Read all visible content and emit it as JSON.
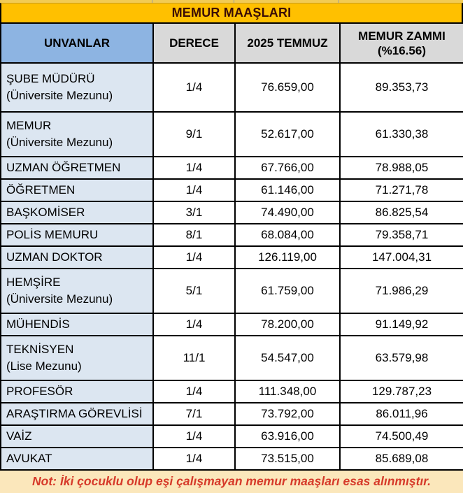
{
  "title": "MEMUR MAAŞLARI",
  "columns": {
    "unvanlar": "UNVANLAR",
    "derece": "DERECE",
    "temmuz": "2025 TEMMUZ",
    "zam_line1": "MEMUR ZAMMI",
    "zam_line2": "(%16.56)"
  },
  "rows": [
    {
      "name": "ŞUBE MÜDÜRÜ",
      "qualifier": "(Üniversite Mezunu)",
      "derece": "1/4",
      "temmuz": "76.659,00",
      "zam": "89.353,73"
    },
    {
      "name": "MEMUR",
      "qualifier": "(Üniversite Mezunu)",
      "derece": "9/1",
      "temmuz": "52.617,00",
      "zam": "61.330,38"
    },
    {
      "name": "UZMAN ÖĞRETMEN",
      "qualifier": "",
      "derece": "1/4",
      "temmuz": "67.766,00",
      "zam": "78.988,05"
    },
    {
      "name": "ÖĞRETMEN",
      "qualifier": "",
      "derece": "1/4",
      "temmuz": "61.146,00",
      "zam": "71.271,78"
    },
    {
      "name": "BAŞKOMİSER",
      "qualifier": "",
      "derece": "3/1",
      "temmuz": "74.490,00",
      "zam": "86.825,54"
    },
    {
      "name": "POLİS MEMURU",
      "qualifier": "",
      "derece": "8/1",
      "temmuz": "68.084,00",
      "zam": "79.358,71"
    },
    {
      "name": "UZMAN DOKTOR",
      "qualifier": "",
      "derece": "1/4",
      "temmuz": "126.119,00",
      "zam": "147.004,31"
    },
    {
      "name": "HEMŞİRE",
      "qualifier": "(Üniversite Mezunu)",
      "derece": "5/1",
      "temmuz": "61.759,00",
      "zam": "71.986,29"
    },
    {
      "name": "MÜHENDİS",
      "qualifier": "",
      "derece": "1/4",
      "temmuz": "78.200,00",
      "zam": "91.149,92"
    },
    {
      "name": "TEKNİSYEN",
      "qualifier": "(Lise Mezunu)",
      "derece": "11/1",
      "temmuz": "54.547,00",
      "zam": "63.579,98"
    },
    {
      "name": "PROFESÖR",
      "qualifier": "",
      "derece": "1/4",
      "temmuz": "111.348,00",
      "zam": "129.787,23"
    },
    {
      "name": "ARAŞTIRMA GÖREVLİSİ",
      "qualifier": "",
      "derece": "7/1",
      "temmuz": "73.792,00",
      "zam": "86.011,96"
    },
    {
      "name": "VAİZ",
      "qualifier": "",
      "derece": "1/4",
      "temmuz": "63.916,00",
      "zam": "74.500,49"
    },
    {
      "name": "AVUKAT",
      "qualifier": "",
      "derece": "1/4",
      "temmuz": "73.515,00",
      "zam": "85.689,08"
    }
  ],
  "note": "Not: İki çocuklu olup eşi çalışmayan memur maaşları esas alınmıştır.",
  "colors": {
    "title_bg": "#FFC000",
    "title_text": "#3B0D06",
    "sliver_bg": "#F2CB54",
    "header_unvan_bg": "#8DB4E2",
    "header_bg": "#D9D9D9",
    "row_label_bg": "#DCE6F1",
    "cell_bg": "#FFFFFF",
    "border": "#000000",
    "note_bg": "#FBE7BB",
    "note_text": "#D63A2A"
  },
  "chart_data": {
    "type": "table",
    "title": "MEMUR MAAŞLARI",
    "columns": [
      "UNVANLAR",
      "DERECE",
      "2025 TEMMUZ",
      "MEMUR ZAMMI (%16.56)"
    ],
    "rows": [
      [
        "ŞUBE MÜDÜRÜ (Üniversite Mezunu)",
        "1/4",
        "76.659,00",
        "89.353,73"
      ],
      [
        "MEMUR (Üniversite Mezunu)",
        "9/1",
        "52.617,00",
        "61.330,38"
      ],
      [
        "UZMAN ÖĞRETMEN",
        "1/4",
        "67.766,00",
        "78.988,05"
      ],
      [
        "ÖĞRETMEN",
        "1/4",
        "61.146,00",
        "71.271,78"
      ],
      [
        "BAŞKOMİSER",
        "3/1",
        "74.490,00",
        "86.825,54"
      ],
      [
        "POLİS MEMURU",
        "8/1",
        "68.084,00",
        "79.358,71"
      ],
      [
        "UZMAN DOKTOR",
        "1/4",
        "126.119,00",
        "147.004,31"
      ],
      [
        "HEMŞİRE (Üniversite Mezunu)",
        "5/1",
        "61.759,00",
        "71.986,29"
      ],
      [
        "MÜHENDİS",
        "1/4",
        "78.200,00",
        "91.149,92"
      ],
      [
        "TEKNİSYEN (Lise Mezunu)",
        "11/1",
        "54.547,00",
        "63.579,98"
      ],
      [
        "PROFESÖR",
        "1/4",
        "111.348,00",
        "129.787,23"
      ],
      [
        "ARAŞTIRMA GÖREVLİSİ",
        "7/1",
        "73.792,00",
        "86.011,96"
      ],
      [
        "VAİZ",
        "1/4",
        "63.916,00",
        "74.500,49"
      ],
      [
        "AVUKAT",
        "1/4",
        "73.515,00",
        "85.689,08"
      ]
    ],
    "note": "Not: İki çocuklu olup eşi çalışmayan memur maaşları esas alınmıştır."
  }
}
